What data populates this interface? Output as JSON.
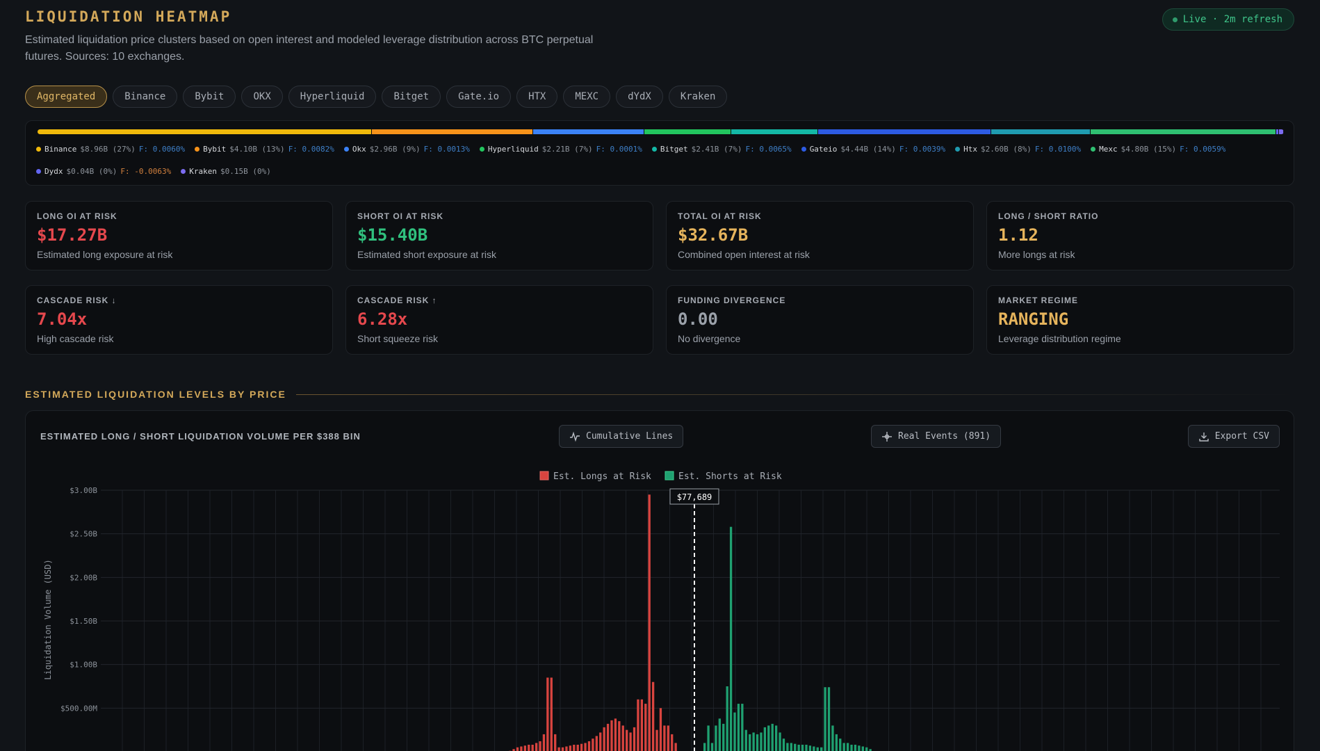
{
  "header": {
    "title": "LIQUIDATION HEATMAP",
    "subtitle": "Estimated liquidation price clusters based on open interest and modeled leverage distribution across BTC perpetual futures. Sources: 10 exchanges.",
    "live_label": "Live · 2m refresh"
  },
  "tabs": [
    "Aggregated",
    "Binance",
    "Bybit",
    "OKX",
    "Hyperliquid",
    "Bitget",
    "Gate.io",
    "HTX",
    "MEXC",
    "dYdX",
    "Kraken"
  ],
  "active_tab": "Aggregated",
  "exchanges": [
    {
      "name": "Binance",
      "oi": "$8.96B (27%)",
      "f": "F: 0.0060%",
      "color": "#f0b90b",
      "share": 27
    },
    {
      "name": "Bybit",
      "oi": "$4.10B (13%)",
      "f": "F: 0.0082%",
      "color": "#f7931a",
      "share": 13
    },
    {
      "name": "Okx",
      "oi": "$2.96B (9%)",
      "f": "F: 0.0013%",
      "color": "#3b82f6",
      "share": 9
    },
    {
      "name": "Hyperliquid",
      "oi": "$2.21B (7%)",
      "f": "F: 0.0001%",
      "color": "#22c55e",
      "share": 7
    },
    {
      "name": "Bitget",
      "oi": "$2.41B (7%)",
      "f": "F: 0.0065%",
      "color": "#14b8a6",
      "share": 7
    },
    {
      "name": "Gateio",
      "oi": "$4.44B (14%)",
      "f": "F: 0.0039%",
      "color": "#2d5be3",
      "share": 14
    },
    {
      "name": "Htx",
      "oi": "$2.60B (8%)",
      "f": "F: 0.0100%",
      "color": "#1f9bb0",
      "share": 8
    },
    {
      "name": "Mexc",
      "oi": "$4.80B (15%)",
      "f": "F: 0.0059%",
      "color": "#2fbf71",
      "share": 15
    },
    {
      "name": "Dydx",
      "oi": "$0.04B (0%)",
      "f": "F: -0.0063%",
      "color": "#6366f1",
      "share": 0.2
    },
    {
      "name": "Kraken",
      "oi": "$0.15B (0%)",
      "f": "",
      "color": "#7c6cf0",
      "share": 0.4
    }
  ],
  "cards": [
    {
      "label": "LONG OI AT RISK",
      "value": "$17.27B",
      "sub": "Estimated long exposure at risk",
      "color": "#e5484d"
    },
    {
      "label": "SHORT OI AT RISK",
      "value": "$15.40B",
      "sub": "Estimated short exposure at risk",
      "color": "#30c07e"
    },
    {
      "label": "TOTAL OI AT RISK",
      "value": "$32.67B",
      "sub": "Combined open interest at risk",
      "color": "#e6b45c"
    },
    {
      "label": "LONG / SHORT RATIO",
      "value": "1.12",
      "sub": "More longs at risk",
      "color": "#e6b45c"
    },
    {
      "label": "CASCADE RISK ↓",
      "value": "7.04x",
      "sub": "High cascade risk",
      "color": "#e5484d"
    },
    {
      "label": "CASCADE RISK ↑",
      "value": "6.28x",
      "sub": "Short squeeze risk",
      "color": "#e5484d"
    },
    {
      "label": "FUNDING DIVERGENCE",
      "value": "0.00",
      "sub": "No divergence",
      "color": "#9ba1aa"
    },
    {
      "label": "MARKET REGIME",
      "value": "RANGING",
      "sub": "Leverage distribution regime",
      "color": "#e6b45c"
    }
  ],
  "section_title": "ESTIMATED LIQUIDATION LEVELS BY PRICE",
  "chart_panel": {
    "heading": "ESTIMATED LONG / SHORT LIQUIDATION VOLUME PER $388 BIN",
    "btn_cumulative": "Cumulative Lines",
    "btn_events": "Real Events (891)",
    "btn_export": "Export CSV"
  },
  "chart_data": {
    "type": "bar",
    "ylabel": "Liquidation Volume (USD)",
    "ylim": [
      0,
      3000000000
    ],
    "y_ticks": [
      "$500.00M",
      "$1.00B",
      "$1.50B",
      "$2.00B",
      "$2.50B",
      "$3.00B"
    ],
    "y_tick_values": [
      500000000,
      1000000000,
      1500000000,
      2000000000,
      2500000000,
      3000000000
    ],
    "current_price_label": "$77,689",
    "series": [
      {
        "name": "Est. Longs at Risk",
        "color": "#d9443f",
        "values": [
          0.01,
          0.03,
          0.05,
          0.06,
          0.07,
          0.08,
          0.08,
          0.1,
          0.12,
          0.2,
          0.85,
          0.85,
          0.2,
          0.05,
          0.05,
          0.06,
          0.07,
          0.08,
          0.08,
          0.09,
          0.1,
          0.12,
          0.15,
          0.18,
          0.22,
          0.28,
          0.32,
          0.36,
          0.38,
          0.35,
          0.3,
          0.25,
          0.22,
          0.28,
          0.6,
          0.6,
          0.55,
          2.95,
          0.8,
          0.25,
          0.5,
          0.3,
          0.3,
          0.2,
          0.1
        ]
      },
      {
        "name": "Est. Shorts at Risk",
        "color": "#1fa171",
        "values": [
          0.1,
          0.3,
          0.1,
          0.3,
          0.38,
          0.32,
          0.75,
          2.58,
          0.45,
          0.55,
          0.55,
          0.25,
          0.2,
          0.22,
          0.2,
          0.22,
          0.28,
          0.3,
          0.32,
          0.3,
          0.22,
          0.15,
          0.1,
          0.1,
          0.09,
          0.08,
          0.08,
          0.08,
          0.07,
          0.06,
          0.05,
          0.05,
          0.74,
          0.74,
          0.3,
          0.2,
          0.15,
          0.1,
          0.1,
          0.08,
          0.08,
          0.07,
          0.06,
          0.05,
          0.03
        ]
      }
    ]
  }
}
